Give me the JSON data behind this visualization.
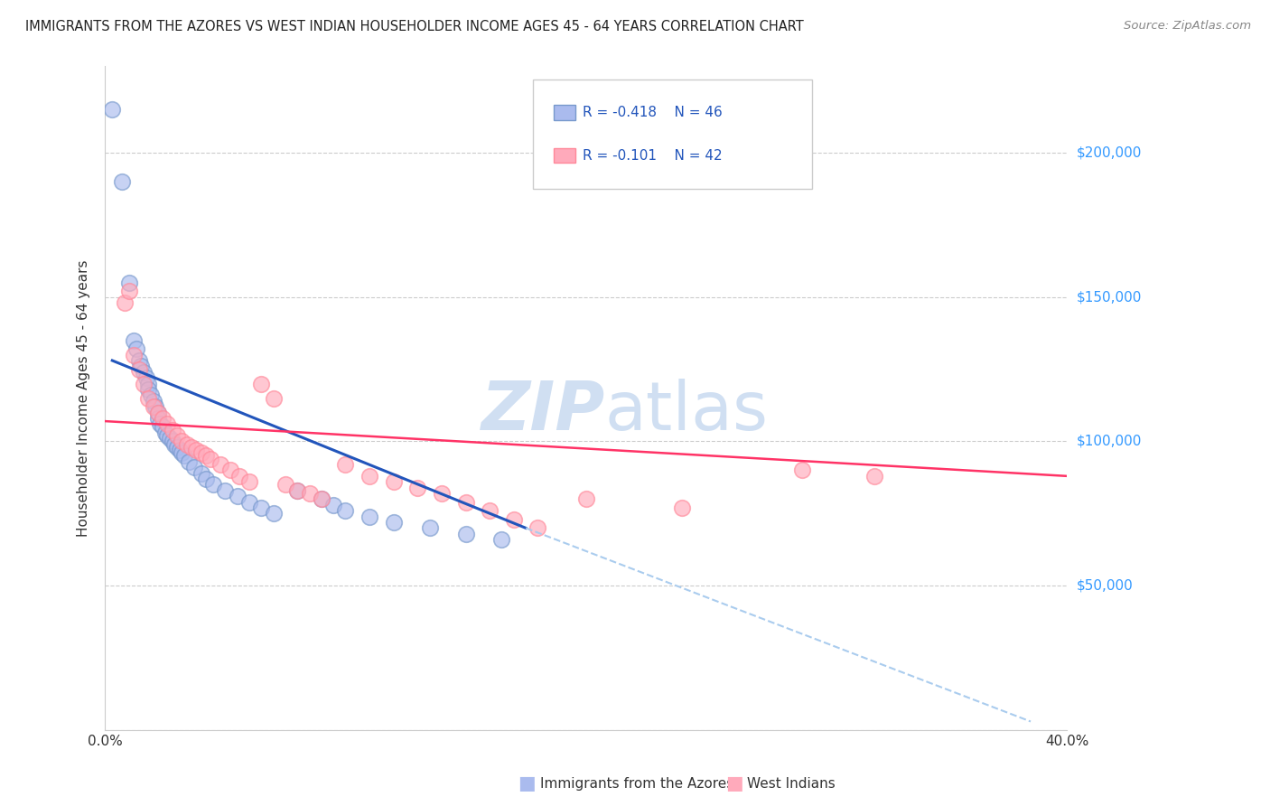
{
  "title": "IMMIGRANTS FROM THE AZORES VS WEST INDIAN HOUSEHOLDER INCOME AGES 45 - 64 YEARS CORRELATION CHART",
  "source": "Source: ZipAtlas.com",
  "ylabel": "Householder Income Ages 45 - 64 years",
  "xlim": [
    0.0,
    0.4
  ],
  "ylim": [
    0,
    230000
  ],
  "color_azores_fill": "#aabbee",
  "color_azores_edge": "#7799cc",
  "color_west_indian_fill": "#ffaabb",
  "color_west_indian_edge": "#ff8899",
  "color_line_azores": "#2255bb",
  "color_line_west_indian": "#ff3366",
  "color_dashed": "#aaccee",
  "color_ytick_labels": "#3399ff",
  "color_grid": "#cccccc",
  "watermark_color": "#c8daf0",
  "azores_x": [
    0.003,
    0.007,
    0.01,
    0.012,
    0.013,
    0.014,
    0.015,
    0.016,
    0.017,
    0.018,
    0.018,
    0.019,
    0.02,
    0.021,
    0.022,
    0.022,
    0.023,
    0.024,
    0.025,
    0.026,
    0.027,
    0.028,
    0.029,
    0.03,
    0.031,
    0.032,
    0.033,
    0.035,
    0.037,
    0.04,
    0.042,
    0.045,
    0.05,
    0.055,
    0.06,
    0.065,
    0.07,
    0.08,
    0.09,
    0.095,
    0.1,
    0.11,
    0.12,
    0.135,
    0.15,
    0.165
  ],
  "azores_y": [
    215000,
    190000,
    155000,
    135000,
    132000,
    128000,
    126000,
    124000,
    122000,
    120000,
    118000,
    116000,
    114000,
    112000,
    110000,
    108000,
    106000,
    105000,
    103000,
    102000,
    101000,
    100000,
    99000,
    98000,
    97000,
    96000,
    95000,
    93000,
    91000,
    89000,
    87000,
    85000,
    83000,
    81000,
    79000,
    77000,
    75000,
    83000,
    80000,
    78000,
    76000,
    74000,
    72000,
    70000,
    68000,
    66000
  ],
  "west_indian_x": [
    0.008,
    0.01,
    0.012,
    0.014,
    0.016,
    0.018,
    0.02,
    0.022,
    0.024,
    0.026,
    0.028,
    0.03,
    0.032,
    0.034,
    0.036,
    0.038,
    0.04,
    0.042,
    0.044,
    0.048,
    0.052,
    0.056,
    0.06,
    0.065,
    0.07,
    0.075,
    0.08,
    0.085,
    0.09,
    0.1,
    0.11,
    0.12,
    0.13,
    0.14,
    0.15,
    0.16,
    0.17,
    0.18,
    0.2,
    0.24,
    0.29,
    0.32
  ],
  "west_indian_y": [
    148000,
    152000,
    130000,
    125000,
    120000,
    115000,
    112000,
    110000,
    108000,
    106000,
    104000,
    102000,
    100000,
    99000,
    98000,
    97000,
    96000,
    95000,
    94000,
    92000,
    90000,
    88000,
    86000,
    120000,
    115000,
    85000,
    83000,
    82000,
    80000,
    92000,
    88000,
    86000,
    84000,
    82000,
    79000,
    76000,
    73000,
    70000,
    80000,
    77000,
    90000,
    88000
  ],
  "az_line_x0": 0.003,
  "az_line_x1": 0.175,
  "az_line_y0": 128000,
  "az_line_y1": 70000,
  "dash_line_x0": 0.175,
  "dash_line_x1": 0.385,
  "dash_line_y0": 70000,
  "dash_line_y1": 3000,
  "wi_line_x0": 0.0,
  "wi_line_x1": 0.4,
  "wi_line_y0": 107000,
  "wi_line_y1": 88000
}
